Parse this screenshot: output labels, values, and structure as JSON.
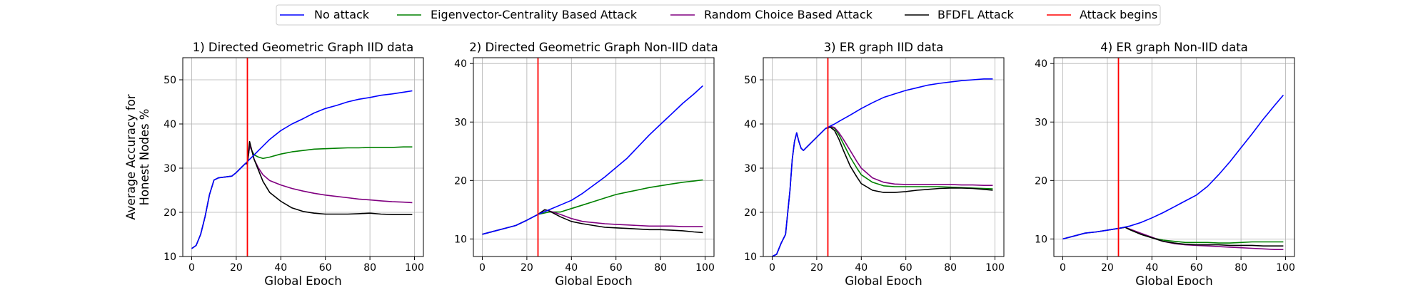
{
  "legend": {
    "placement": "top-center",
    "entries": [
      {
        "label": "No attack",
        "color": "#0000ff"
      },
      {
        "label": "Eigenvector-Centrality Based Attack",
        "color": "#008000"
      },
      {
        "label": "Random Choice Based Attack",
        "color": "#800080"
      },
      {
        "label": "BFDFL Attack",
        "color": "#000000"
      },
      {
        "label": "Attack begins",
        "color": "#ff0000"
      }
    ]
  },
  "colors": {
    "no_attack": "#0000ff",
    "eigen": "#008000",
    "random": "#800080",
    "bfdfl": "#000000",
    "attack_line": "#ff0000",
    "grid": "#b0b0b0"
  },
  "chart_data": [
    {
      "type": "line",
      "title": "1)  Directed Geometric Graph IID data",
      "xlabel": "Global Epoch",
      "ylabel": "Average Accuracy for\nHonest Nodes %",
      "xlim": [
        -4,
        104
      ],
      "ylim": [
        10,
        55
      ],
      "xticks": [
        0,
        20,
        40,
        60,
        80,
        100
      ],
      "yticks": [
        10,
        20,
        30,
        40,
        50
      ],
      "grid": true,
      "attack_begins_x": 25,
      "series": [
        {
          "name": "No attack",
          "key": "no_attack",
          "x": [
            0,
            2,
            4,
            6,
            8,
            10,
            12,
            15,
            18,
            20,
            22,
            24,
            26,
            28,
            30,
            35,
            40,
            45,
            50,
            55,
            60,
            65,
            70,
            75,
            80,
            85,
            90,
            95,
            99
          ],
          "y": [
            11.8,
            12.5,
            15,
            19,
            24,
            27.3,
            27.8,
            28,
            28.2,
            29,
            30,
            31,
            32,
            33,
            34,
            36.5,
            38.5,
            40,
            41.2,
            42.5,
            43.5,
            44.2,
            45,
            45.6,
            46,
            46.5,
            46.8,
            47.2,
            47.5
          ]
        },
        {
          "name": "Eigenvector-Centrality Based Attack",
          "key": "eigen",
          "x": [
            25,
            26,
            27,
            28,
            30,
            32,
            35,
            40,
            45,
            50,
            55,
            60,
            65,
            70,
            75,
            80,
            85,
            90,
            95,
            99
          ],
          "y": [
            31,
            35,
            34,
            33,
            32.5,
            32.2,
            32.5,
            33.2,
            33.7,
            34,
            34.3,
            34.4,
            34.5,
            34.6,
            34.6,
            34.7,
            34.7,
            34.7,
            34.8,
            34.8
          ]
        },
        {
          "name": "Random Choice Based Attack",
          "key": "random",
          "x": [
            25,
            26,
            27,
            28,
            30,
            32,
            35,
            40,
            45,
            50,
            55,
            60,
            65,
            70,
            75,
            80,
            85,
            90,
            95,
            99
          ],
          "y": [
            31,
            35,
            34,
            32,
            30,
            28.5,
            27.2,
            26.2,
            25.4,
            24.8,
            24.3,
            23.9,
            23.6,
            23.3,
            23,
            22.8,
            22.6,
            22.4,
            22.3,
            22.2
          ]
        },
        {
          "name": "BFDFL Attack",
          "key": "bfdfl",
          "x": [
            0,
            2,
            4,
            6,
            8,
            10,
            12,
            15,
            18,
            20,
            22,
            24,
            25,
            26,
            27,
            28,
            30,
            32,
            35,
            40,
            45,
            50,
            55,
            60,
            65,
            70,
            75,
            80,
            85,
            90,
            95,
            99
          ],
          "y": [
            11.8,
            12.5,
            15,
            19,
            24,
            27.3,
            27.8,
            28,
            28.2,
            29,
            30,
            31,
            31,
            36,
            34,
            32,
            29.5,
            27,
            24.5,
            22.5,
            21,
            20.2,
            19.8,
            19.6,
            19.6,
            19.6,
            19.7,
            19.8,
            19.6,
            19.5,
            19.5,
            19.5
          ]
        }
      ]
    },
    {
      "type": "line",
      "title": "2)  Directed Geometric Graph Non-IID data",
      "xlabel": "Global Epoch",
      "ylabel": "",
      "xlim": [
        -4,
        104
      ],
      "ylim": [
        7,
        41
      ],
      "xticks": [
        0,
        20,
        40,
        60,
        80,
        100
      ],
      "yticks": [
        10,
        20,
        30,
        40
      ],
      "grid": true,
      "attack_begins_x": 25,
      "series": [
        {
          "name": "No attack",
          "key": "no_attack",
          "x": [
            0,
            5,
            10,
            15,
            20,
            25,
            30,
            35,
            40,
            45,
            50,
            55,
            60,
            65,
            70,
            75,
            80,
            85,
            90,
            95,
            99
          ],
          "y": [
            10.8,
            11.3,
            11.8,
            12.3,
            13.2,
            14.2,
            15,
            15.8,
            16.6,
            17.8,
            19.2,
            20.6,
            22.2,
            23.8,
            25.8,
            27.8,
            29.6,
            31.4,
            33.2,
            34.8,
            36.2
          ]
        },
        {
          "name": "Eigenvector-Centrality Based Attack",
          "key": "eigen",
          "x": [
            25,
            30,
            35,
            40,
            45,
            50,
            55,
            60,
            65,
            70,
            75,
            80,
            85,
            90,
            95,
            99
          ],
          "y": [
            14.2,
            14.6,
            14.6,
            15.2,
            15.8,
            16.4,
            17,
            17.6,
            18,
            18.4,
            18.8,
            19.1,
            19.4,
            19.7,
            19.9,
            20.1
          ]
        },
        {
          "name": "Random Choice Based Attack",
          "key": "random",
          "x": [
            25,
            28,
            30,
            35,
            40,
            45,
            50,
            55,
            60,
            65,
            70,
            75,
            80,
            85,
            90,
            95,
            99
          ],
          "y": [
            14.2,
            15,
            14.8,
            14.2,
            13.5,
            13,
            12.8,
            12.6,
            12.5,
            12.4,
            12.3,
            12.2,
            12.2,
            12.2,
            12.1,
            12.1,
            12.1
          ]
        },
        {
          "name": "BFDFL Attack",
          "key": "bfdfl",
          "x": [
            0,
            5,
            10,
            15,
            20,
            25,
            28,
            30,
            35,
            40,
            45,
            50,
            55,
            60,
            65,
            70,
            75,
            80,
            85,
            90,
            95,
            99
          ],
          "y": [
            10.8,
            11.3,
            11.8,
            12.3,
            13.2,
            14.2,
            15,
            14.8,
            13.8,
            13,
            12.6,
            12.3,
            12,
            11.9,
            11.8,
            11.7,
            11.6,
            11.6,
            11.5,
            11.4,
            11.2,
            11.1
          ]
        }
      ]
    },
    {
      "type": "line",
      "title": "3)  ER graph IID data",
      "xlabel": "Global Epoch",
      "ylabel": "",
      "xlim": [
        -4,
        104
      ],
      "ylim": [
        10,
        55
      ],
      "xticks": [
        0,
        20,
        40,
        60,
        80,
        100
      ],
      "yticks": [
        10,
        20,
        30,
        40,
        50
      ],
      "grid": true,
      "attack_begins_x": 25,
      "series": [
        {
          "name": "No attack",
          "key": "no_attack",
          "x": [
            0,
            2,
            4,
            6,
            8,
            9,
            10,
            11,
            12,
            13,
            14,
            16,
            18,
            20,
            22,
            24,
            26,
            28,
            30,
            35,
            40,
            45,
            50,
            55,
            60,
            65,
            70,
            75,
            80,
            85,
            90,
            95,
            99
          ],
          "y": [
            10,
            10.5,
            13,
            15,
            25,
            32,
            36,
            38,
            36,
            34.5,
            34,
            35,
            36,
            37,
            38,
            39,
            39.5,
            40,
            40.6,
            42,
            43.5,
            44.8,
            46,
            46.8,
            47.6,
            48.2,
            48.8,
            49.2,
            49.5,
            49.8,
            50,
            50.2,
            50.2
          ]
        },
        {
          "name": "Eigenvector-Centrality Based Attack",
          "key": "eigen",
          "x": [
            25,
            26,
            28,
            30,
            32,
            35,
            38,
            40,
            45,
            50,
            55,
            60,
            65,
            70,
            75,
            80,
            85,
            90,
            95,
            99
          ],
          "y": [
            39,
            39.4,
            39,
            37.5,
            35.5,
            32.5,
            30,
            28.5,
            26.8,
            26,
            25.8,
            25.8,
            25.8,
            25.8,
            25.8,
            25.7,
            25.6,
            25.5,
            25.4,
            25.3
          ]
        },
        {
          "name": "Random Choice Based Attack",
          "key": "random",
          "x": [
            25,
            26,
            28,
            30,
            32,
            35,
            38,
            40,
            45,
            50,
            55,
            60,
            65,
            70,
            75,
            80,
            85,
            90,
            95,
            99
          ],
          "y": [
            39,
            39.5,
            39.2,
            38,
            36.5,
            34,
            31.5,
            30,
            27.8,
            26.8,
            26.4,
            26.3,
            26.3,
            26.3,
            26.3,
            26.3,
            26.2,
            26.2,
            26.1,
            26.1
          ]
        },
        {
          "name": "BFDFL Attack",
          "key": "bfdfl",
          "x": [
            0,
            2,
            4,
            6,
            8,
            9,
            10,
            11,
            12,
            13,
            14,
            16,
            18,
            20,
            22,
            24,
            26,
            28,
            30,
            32,
            35,
            38,
            40,
            45,
            50,
            55,
            60,
            65,
            70,
            75,
            80,
            85,
            90,
            95,
            99
          ],
          "y": [
            10,
            10.5,
            13,
            15,
            25,
            32,
            36,
            38,
            36,
            34.5,
            34,
            35,
            36,
            37,
            38,
            39,
            39.3,
            38.5,
            36.5,
            34,
            30.5,
            28,
            26.5,
            25,
            24.5,
            24.5,
            24.7,
            25,
            25.2,
            25.4,
            25.5,
            25.5,
            25.4,
            25.2,
            25
          ]
        }
      ]
    },
    {
      "type": "line",
      "title": "4)  ER graph Non-IID data",
      "xlabel": "Global Epoch",
      "ylabel": "",
      "xlim": [
        -4,
        104
      ],
      "ylim": [
        7,
        41
      ],
      "xticks": [
        0,
        20,
        40,
        60,
        80,
        100
      ],
      "yticks": [
        10,
        20,
        30,
        40
      ],
      "grid": true,
      "attack_begins_x": 25,
      "series": [
        {
          "name": "No attack",
          "key": "no_attack",
          "x": [
            0,
            5,
            10,
            15,
            20,
            25,
            30,
            35,
            40,
            45,
            50,
            55,
            60,
            65,
            70,
            75,
            80,
            85,
            90,
            95,
            99
          ],
          "y": [
            10,
            10.5,
            11,
            11.2,
            11.5,
            11.8,
            12.2,
            12.8,
            13.6,
            14.5,
            15.5,
            16.5,
            17.5,
            19,
            21,
            23.2,
            25.6,
            28,
            30.5,
            32.8,
            34.6
          ]
        },
        {
          "name": "Eigenvector-Centrality Based Attack",
          "key": "eigen",
          "x": [
            25,
            28,
            30,
            35,
            40,
            45,
            50,
            55,
            60,
            65,
            70,
            75,
            80,
            85,
            90,
            95,
            99
          ],
          "y": [
            11.8,
            12,
            11.6,
            10.8,
            10.2,
            9.8,
            9.6,
            9.4,
            9.4,
            9.4,
            9.3,
            9.3,
            9.4,
            9.5,
            9.5,
            9.5,
            9.5
          ]
        },
        {
          "name": "Random Choice Based Attack",
          "key": "random",
          "x": [
            25,
            28,
            30,
            35,
            40,
            45,
            50,
            55,
            60,
            65,
            70,
            75,
            80,
            85,
            90,
            95,
            99
          ],
          "y": [
            11.8,
            12,
            11.7,
            11,
            10.3,
            9.6,
            9.2,
            9,
            8.9,
            8.8,
            8.7,
            8.6,
            8.5,
            8.4,
            8.3,
            8.2,
            8.2
          ]
        },
        {
          "name": "BFDFL Attack",
          "key": "bfdfl",
          "x": [
            0,
            5,
            10,
            15,
            20,
            25,
            28,
            30,
            35,
            40,
            45,
            50,
            55,
            60,
            65,
            70,
            75,
            80,
            85,
            90,
            95,
            99
          ],
          "y": [
            10,
            10.5,
            11,
            11.2,
            11.5,
            11.8,
            12,
            11.6,
            10.8,
            10.2,
            9.6,
            9.3,
            9.1,
            9,
            9,
            9,
            8.9,
            8.9,
            8.9,
            8.8,
            8.8,
            8.8
          ]
        }
      ]
    }
  ]
}
